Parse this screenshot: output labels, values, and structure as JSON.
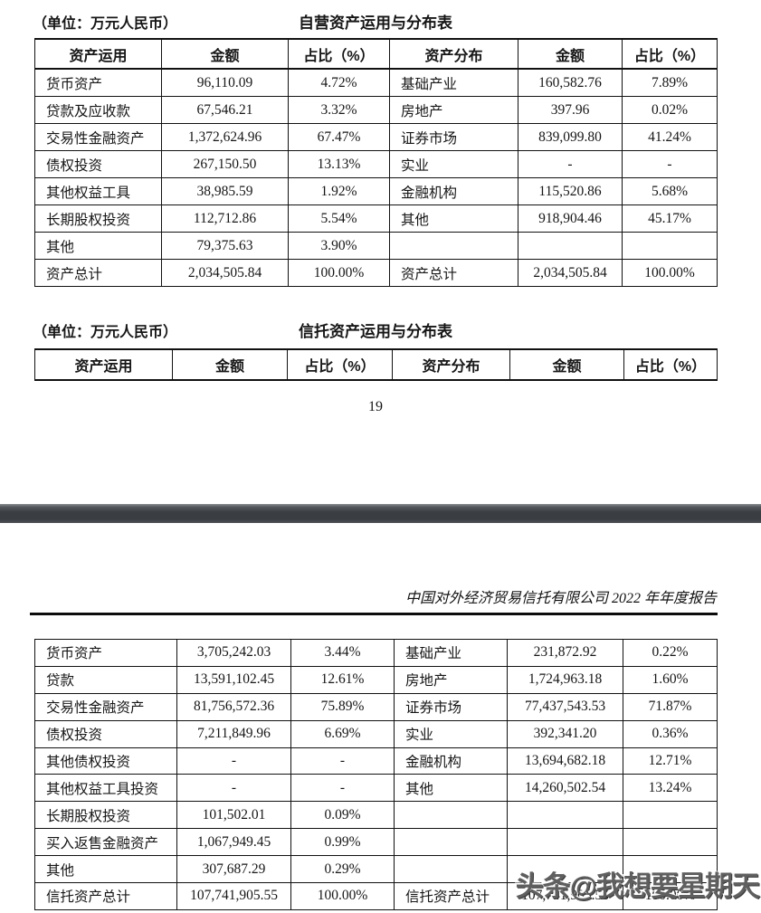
{
  "page_top": {
    "unit_label": "（单位：万元人民币）",
    "own_assets_table": {
      "title": "自营资产运用与分布表",
      "headers": [
        "资产运用",
        "金额",
        "占比（%）",
        "资产分布",
        "金额",
        "占比（%）"
      ],
      "rows": [
        [
          "货币资产",
          "96,110.09",
          "4.72%",
          "基础产业",
          "160,582.76",
          "7.89%"
        ],
        [
          "贷款及应收款",
          "67,546.21",
          "3.32%",
          "房地产",
          "397.96",
          "0.02%"
        ],
        [
          "交易性金融资产",
          "1,372,624.96",
          "67.47%",
          "证券市场",
          "839,099.80",
          "41.24%"
        ],
        [
          "债权投资",
          "267,150.50",
          "13.13%",
          "实业",
          "-",
          "-"
        ],
        [
          "其他权益工具",
          "38,985.59",
          "1.92%",
          "金融机构",
          "115,520.86",
          "5.68%"
        ],
        [
          "长期股权投资",
          "112,712.86",
          "5.54%",
          "其他",
          "918,904.46",
          "45.17%"
        ],
        [
          "其他",
          "79,375.63",
          "3.90%",
          "",
          "",
          ""
        ],
        [
          "资产总计",
          "2,034,505.84",
          "100.00%",
          "资产总计",
          "2,034,505.84",
          "100.00%"
        ]
      ]
    },
    "trust_assets_table_header": {
      "unit_label": "（单位：万元人民币）",
      "title": "信托资产运用与分布表",
      "headers": [
        "资产运用",
        "金额",
        "占比（%）",
        "资产分布",
        "金额",
        "占比（%）"
      ]
    },
    "page_number": "19"
  },
  "page_bottom": {
    "report_header": "中国对外经济贸易信托有限公司 2022 年年度报告",
    "trust_assets_rows": [
      [
        "货币资产",
        "3,705,242.03",
        "3.44%",
        "基础产业",
        "231,872.92",
        "0.22%"
      ],
      [
        "贷款",
        "13,591,102.45",
        "12.61%",
        "房地产",
        "1,724,963.18",
        "1.60%"
      ],
      [
        "交易性金融资产",
        "81,756,572.36",
        "75.89%",
        "证券市场",
        "77,437,543.53",
        "71.87%"
      ],
      [
        "债权投资",
        "7,211,849.96",
        "6.69%",
        "实业",
        "392,341.20",
        "0.36%"
      ],
      [
        "其他债权投资",
        "-",
        "-",
        "金融机构",
        "13,694,682.18",
        "12.71%"
      ],
      [
        "其他权益工具投资",
        "-",
        "-",
        "其他",
        "14,260,502.54",
        "13.24%"
      ],
      [
        "长期股权投资",
        "101,502.01",
        "0.09%",
        "",
        "",
        ""
      ],
      [
        "买入返售金融资产",
        "1,067,949.45",
        "0.99%",
        "",
        "",
        ""
      ],
      [
        "其他",
        "307,687.29",
        "0.29%",
        "",
        "",
        ""
      ],
      [
        "信托资产总计",
        "107,741,905.55",
        "100.00%",
        "信托资产总计",
        "107,741,905.55",
        "100.00%"
      ]
    ]
  },
  "watermark": {
    "text": "头条@我想要星期天"
  }
}
